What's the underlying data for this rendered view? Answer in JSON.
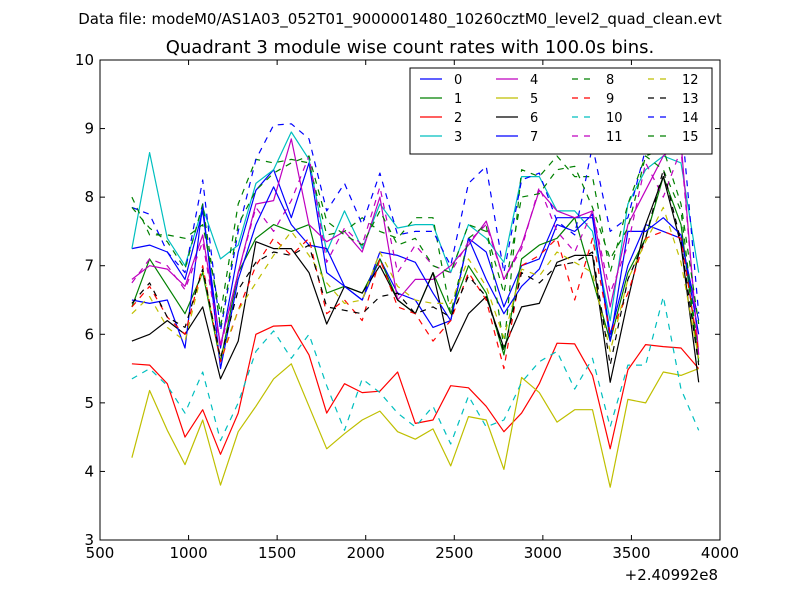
{
  "chart_data": {
    "type": "line",
    "suptitle": "Data file: modeM0/AS1A03_052T01_9000001480_10260cztM0_level2_quad_clean.evt",
    "title": "Quadrant 3 module wise count rates with 100.0s bins.",
    "xlabel": "",
    "ylabel": "",
    "xlim": [
      500,
      4000
    ],
    "ylim": [
      3,
      10
    ],
    "x_offset_label": "+2.40992e8",
    "xticks": [
      "500",
      "1000",
      "1500",
      "2000",
      "2500",
      "3000",
      "3500",
      "4000"
    ],
    "yticks": [
      "3",
      "4",
      "5",
      "6",
      "7",
      "8",
      "9",
      "10"
    ],
    "legend_location": "upper-right",
    "x": [
      680,
      780,
      880,
      980,
      1080,
      1180,
      1280,
      1380,
      1480,
      1580,
      1680,
      1780,
      1880,
      1980,
      2080,
      2180,
      2280,
      2380,
      2480,
      2580,
      2680,
      2780,
      2880,
      2980,
      3080,
      3180,
      3280,
      3380,
      3480,
      3580,
      3680,
      3780,
      3880
    ],
    "series": [
      {
        "name": "0",
        "color": "#0000ff",
        "dash": "solid",
        "values": [
          7.25,
          7.3,
          7.2,
          6.8,
          7.8,
          5.8,
          7.2,
          8.1,
          8.4,
          7.7,
          8.5,
          6.9,
          6.7,
          6.5,
          7.1,
          6.6,
          6.5,
          6.1,
          6.2,
          7.4,
          7.2,
          6.4,
          7.0,
          7.1,
          7.7,
          7.7,
          7.7,
          6.0,
          7.0,
          7.6,
          7.5,
          7.4,
          6.2
        ]
      },
      {
        "name": "1",
        "color": "#008000",
        "dash": "solid",
        "values": [
          6.4,
          7.1,
          6.7,
          6.3,
          6.9,
          5.6,
          6.9,
          7.4,
          7.6,
          7.5,
          7.6,
          6.6,
          6.7,
          6.6,
          7.1,
          6.5,
          6.3,
          6.9,
          6.3,
          7.0,
          6.6,
          5.7,
          7.1,
          7.3,
          7.4,
          7.7,
          6.8,
          5.9,
          6.9,
          7.4,
          8.3,
          7.6,
          5.6
        ]
      },
      {
        "name": "2",
        "color": "#ff0000",
        "dash": "solid",
        "values": [
          5.57,
          5.55,
          5.28,
          4.5,
          4.9,
          4.25,
          4.85,
          6.0,
          6.12,
          6.13,
          5.7,
          4.85,
          5.28,
          5.15,
          5.17,
          5.45,
          4.7,
          4.75,
          5.25,
          5.22,
          4.95,
          4.58,
          4.85,
          5.28,
          5.87,
          5.86,
          5.4,
          4.33,
          5.48,
          5.85,
          5.82,
          5.8,
          5.5
        ]
      },
      {
        "name": "3",
        "color": "#00bfbf",
        "dash": "solid",
        "values": [
          7.25,
          8.65,
          7.4,
          7.0,
          7.85,
          7.1,
          7.3,
          8.2,
          8.4,
          8.95,
          8.55,
          7.2,
          7.8,
          7.25,
          7.9,
          7.55,
          7.6,
          7.6,
          6.9,
          7.6,
          7.4,
          7.05,
          8.3,
          8.3,
          7.8,
          7.8,
          7.5,
          6.2,
          7.9,
          8.4,
          8.6,
          8.5,
          6.9
        ]
      },
      {
        "name": "4",
        "color": "#bf00bf",
        "dash": "solid",
        "values": [
          6.8,
          7.0,
          6.95,
          6.7,
          7.45,
          5.85,
          6.9,
          7.9,
          7.95,
          8.85,
          7.6,
          7.35,
          7.5,
          7.2,
          8.0,
          6.5,
          6.8,
          6.8,
          7.0,
          7.3,
          7.65,
          6.8,
          7.3,
          8.1,
          7.8,
          7.7,
          7.8,
          6.4,
          7.6,
          8.1,
          8.6,
          8.8,
          5.7
        ]
      },
      {
        "name": "5",
        "color": "#bfbf00",
        "dash": "solid",
        "values": [
          4.2,
          5.18,
          4.6,
          4.1,
          4.75,
          3.8,
          4.58,
          4.95,
          5.35,
          5.57,
          4.95,
          4.33,
          4.55,
          4.75,
          4.88,
          4.58,
          4.47,
          4.62,
          4.08,
          4.8,
          4.75,
          4.03,
          5.37,
          5.15,
          4.72,
          4.9,
          4.9,
          3.77,
          5.05,
          5.0,
          5.45,
          5.4,
          5.5
        ]
      },
      {
        "name": "6",
        "color": "#000000",
        "dash": "solid",
        "values": [
          5.9,
          6.0,
          6.2,
          6.0,
          6.4,
          5.35,
          5.9,
          7.35,
          7.25,
          7.25,
          6.9,
          6.15,
          6.7,
          6.6,
          7.0,
          6.5,
          6.3,
          6.9,
          5.75,
          6.3,
          6.55,
          5.8,
          6.4,
          6.45,
          7.05,
          7.15,
          7.15,
          5.3,
          6.5,
          7.6,
          8.3,
          7.3,
          5.3
        ]
      },
      {
        "name": "7",
        "color": "#0000ff",
        "dash": "solid",
        "values": [
          6.5,
          6.45,
          6.5,
          5.8,
          7.9,
          5.5,
          6.8,
          7.6,
          8.15,
          7.6,
          7.3,
          7.25,
          6.7,
          6.5,
          7.2,
          7.15,
          7.05,
          6.6,
          6.2,
          7.4,
          6.8,
          6.3,
          6.7,
          6.95,
          7.6,
          7.5,
          7.75,
          5.9,
          7.5,
          7.5,
          7.7,
          7.45,
          6.0
        ]
      },
      {
        "name": "8",
        "color": "#008000",
        "dash": "dashed",
        "values": [
          8.0,
          7.45,
          7.45,
          7.4,
          7.6,
          6.3,
          7.9,
          8.55,
          8.5,
          8.55,
          8.5,
          7.45,
          7.5,
          7.7,
          7.5,
          7.4,
          7.7,
          7.7,
          6.3,
          7.4,
          7.6,
          5.8,
          8.4,
          8.3,
          8.6,
          8.3,
          8.3,
          6.9,
          7.9,
          8.6,
          8.4,
          7.8,
          5.65
        ]
      },
      {
        "name": "9",
        "color": "#ff0000",
        "dash": "dashed",
        "values": [
          6.4,
          6.7,
          6.25,
          6.0,
          7.0,
          5.6,
          6.35,
          7.0,
          7.4,
          7.15,
          7.4,
          6.3,
          6.5,
          6.2,
          7.1,
          6.4,
          6.3,
          5.9,
          6.2,
          6.9,
          6.5,
          5.5,
          7.0,
          7.15,
          7.4,
          6.5,
          7.4,
          6.0,
          6.6,
          7.4,
          7.5,
          7.4,
          5.75
        ]
      },
      {
        "name": "10",
        "color": "#00bfbf",
        "dash": "dashed",
        "values": [
          5.35,
          5.5,
          5.25,
          4.85,
          5.45,
          4.45,
          5.0,
          5.75,
          6.05,
          5.65,
          6.0,
          5.25,
          4.6,
          5.35,
          5.15,
          4.85,
          4.65,
          4.95,
          4.4,
          5.1,
          4.65,
          4.75,
          5.3,
          5.6,
          5.75,
          5.2,
          5.65,
          4.65,
          5.55,
          5.55,
          6.55,
          5.2,
          4.6
        ]
      },
      {
        "name": "11",
        "color": "#bf00bf",
        "dash": "dashed",
        "values": [
          6.75,
          7.1,
          7.0,
          6.65,
          7.35,
          5.8,
          6.9,
          7.85,
          7.5,
          7.95,
          8.6,
          7.05,
          7.55,
          7.3,
          8.15,
          6.9,
          7.3,
          7.0,
          6.9,
          7.35,
          7.6,
          6.8,
          7.25,
          8.15,
          7.5,
          7.2,
          7.8,
          6.6,
          7.3,
          8.5,
          8.0,
          8.7,
          5.7
        ]
      },
      {
        "name": "12",
        "color": "#bfbf00",
        "dash": "dashed",
        "values": [
          6.3,
          6.55,
          6.1,
          5.9,
          6.95,
          5.65,
          6.35,
          6.75,
          7.15,
          7.5,
          7.15,
          6.75,
          6.45,
          6.5,
          7.2,
          6.7,
          6.5,
          6.45,
          6.45,
          7.1,
          6.7,
          5.95,
          6.95,
          6.85,
          7.2,
          7.05,
          6.9,
          5.75,
          6.8,
          7.35,
          7.85,
          7.05,
          5.65
        ]
      },
      {
        "name": "13",
        "color": "#000000",
        "dash": "dashed",
        "values": [
          6.45,
          6.75,
          6.25,
          6.1,
          6.95,
          5.65,
          6.65,
          7.05,
          7.2,
          7.15,
          7.3,
          6.4,
          6.35,
          6.3,
          6.55,
          6.6,
          6.3,
          6.4,
          6.25,
          6.85,
          6.55,
          5.75,
          6.9,
          6.75,
          7.0,
          7.05,
          7.2,
          5.55,
          6.8,
          7.4,
          8.4,
          7.35,
          5.55
        ]
      },
      {
        "name": "14",
        "color": "#0000ff",
        "dash": "dashed",
        "values": [
          7.85,
          7.75,
          7.2,
          6.9,
          8.25,
          6.05,
          7.5,
          8.55,
          9.05,
          9.07,
          8.85,
          7.8,
          8.2,
          7.6,
          8.35,
          7.45,
          7.5,
          7.5,
          7.0,
          8.2,
          8.45,
          6.9,
          8.25,
          8.35,
          7.65,
          7.45,
          8.75,
          7.5,
          7.7,
          8.7,
          9.15,
          9.2,
          6.3
        ]
      },
      {
        "name": "15",
        "color": "#008000",
        "dash": "dashed",
        "values": [
          7.85,
          7.55,
          7.35,
          6.95,
          7.9,
          6.1,
          7.6,
          8.1,
          8.35,
          8.5,
          8.6,
          7.65,
          7.45,
          7.3,
          7.8,
          7.3,
          7.4,
          7.0,
          6.9,
          7.6,
          7.5,
          6.6,
          8.0,
          8.05,
          8.4,
          8.45,
          7.85,
          7.1,
          7.55,
          8.6,
          8.7,
          7.9,
          6.15
        ]
      }
    ]
  }
}
